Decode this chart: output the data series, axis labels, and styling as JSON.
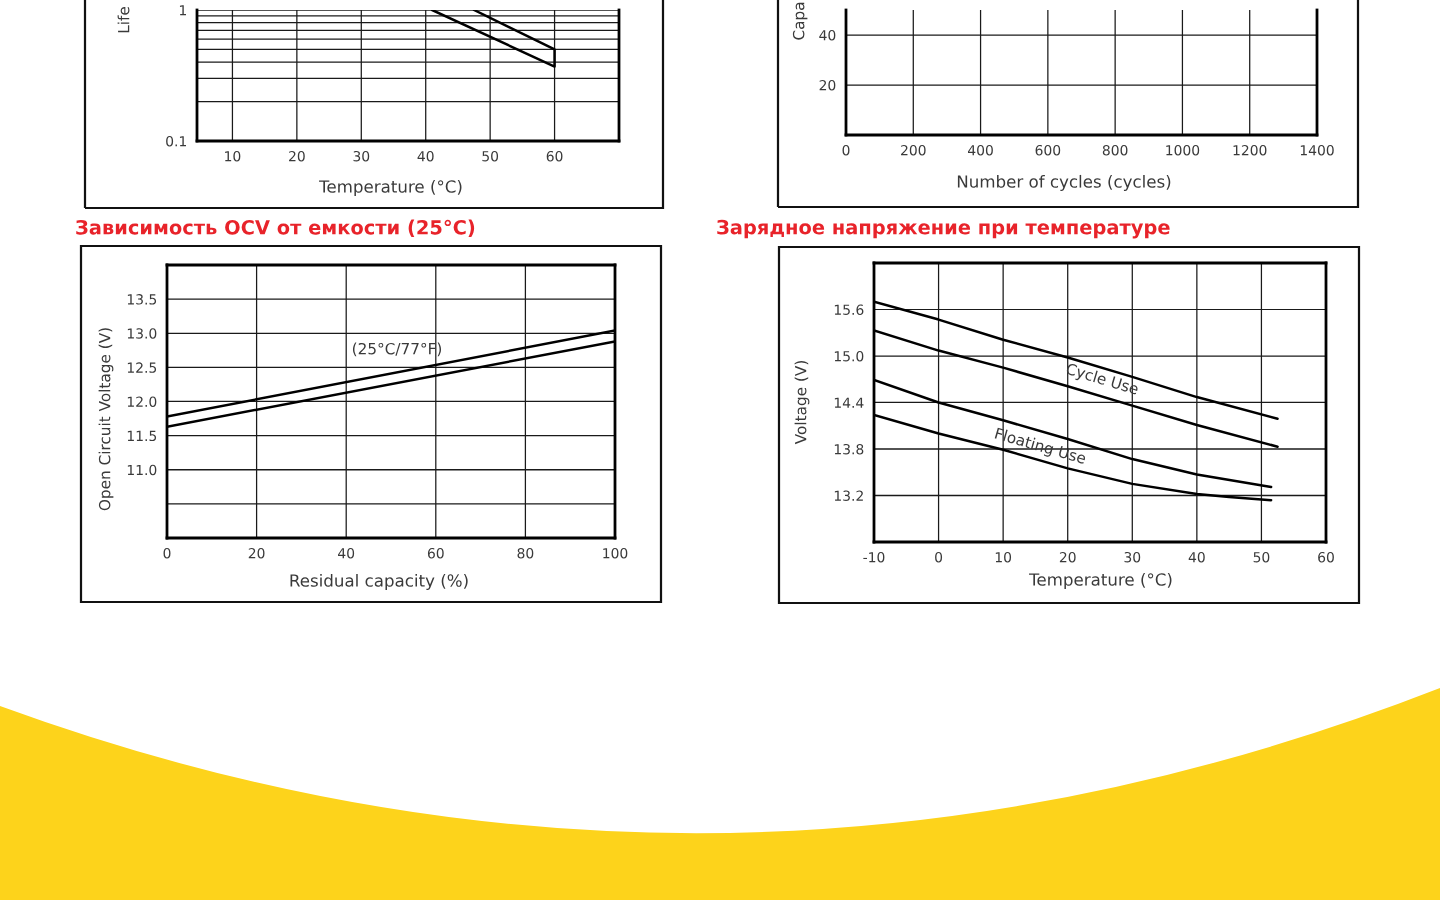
{
  "chart_data": [
    {
      "type": "line",
      "xlabel": "Temperature (°C)",
      "ylabel": "Life",
      "log": true,
      "xlim": [
        4.5,
        70
      ],
      "xticks": [
        10,
        20,
        30,
        40,
        50,
        60
      ],
      "ylim": [
        0.1,
        1
      ],
      "yticks": [
        0.1,
        {
          "value": 0.2,
          "label": null
        },
        {
          "value": 0.3,
          "label": null
        },
        {
          "value": 0.4,
          "label": null
        },
        {
          "value": 0.5,
          "label": null
        },
        {
          "value": 0.6,
          "label": null
        },
        {
          "value": 0.7,
          "label": null
        },
        {
          "value": 0.8,
          "label": null
        },
        {
          "value": 0.9,
          "label": null
        },
        1
      ],
      "grid": true,
      "line_style": "solid",
      "series": [
        {
          "color": "#000000",
          "x": [
            47.5,
            60,
            60,
            41
          ],
          "values": [
            1,
            0.5,
            0.37,
            1
          ]
        }
      ]
    },
    {
      "type": "line",
      "xlabel": "Number of cycles (cycles)",
      "ylabel": "Capa",
      "xlim": [
        0,
        1400
      ],
      "xticks": [
        0,
        200,
        400,
        600,
        800,
        1000,
        1200,
        1400
      ],
      "ylim": [
        0,
        50
      ],
      "yticks": [
        20,
        40
      ],
      "grid": true
    },
    {
      "type": "line",
      "title": "Зависимость OCV от емкости (25°C)",
      "xlabel": "Residual capacity (%)",
      "ylabel": "Open Circuit Voltage (V)",
      "xlim": [
        0,
        100
      ],
      "xticks": [
        0,
        20,
        40,
        60,
        80,
        100
      ],
      "ylim": [
        10,
        14
      ],
      "yticks": [
        {
          "value": 10.5,
          "label": null
        },
        {
          "value": 11,
          "label": "11.0"
        },
        11.5,
        {
          "value": 12,
          "label": "12.0"
        },
        12.5,
        {
          "value": 13,
          "label": "13.0"
        },
        13.5
      ],
      "grid": true,
      "line_style": "solid",
      "series": [
        {
          "color": "#000000",
          "x": [
            0,
            100
          ],
          "values": [
            11.78,
            13.04
          ]
        },
        {
          "color": "#000000",
          "x": [
            0,
            100
          ],
          "values": [
            11.63,
            12.88
          ]
        }
      ],
      "annotations": [
        "(25°C/77°F)"
      ]
    },
    {
      "type": "line",
      "title": "Зарядное напряжение при температуре",
      "xlabel": "Temperature (°C)",
      "ylabel": "Voltage (V)",
      "xlim": [
        -10,
        60
      ],
      "xticks": [
        -10,
        0,
        10,
        20,
        30,
        40,
        50,
        60
      ],
      "ylim": [
        12.6,
        16.2
      ],
      "yticks": [
        13.2,
        13.8,
        14.4,
        {
          "value": 15,
          "label": "15.0"
        },
        15.6
      ],
      "grid": true,
      "line_style": "solid",
      "series": [
        {
          "color": "#000000",
          "x": [
            -10,
            0,
            10,
            20,
            30,
            40,
            52.5
          ],
          "values": [
            15.7,
            15.47,
            15.21,
            14.98,
            14.73,
            14.47,
            14.19
          ]
        },
        {
          "color": "#000000",
          "x": [
            -10,
            0,
            10,
            20,
            30,
            40,
            52.5
          ],
          "values": [
            15.33,
            15.07,
            14.85,
            14.61,
            14.36,
            14.11,
            13.83
          ]
        },
        {
          "color": "#000000",
          "x": [
            -10,
            0,
            10,
            20,
            30,
            40,
            51.5
          ],
          "values": [
            14.69,
            14.4,
            14.17,
            13.93,
            13.67,
            13.47,
            13.31
          ]
        },
        {
          "color": "#000000",
          "x": [
            -10,
            0,
            10,
            20,
            30,
            40,
            45,
            51.5
          ],
          "values": [
            14.24,
            14.0,
            13.79,
            13.55,
            13.35,
            13.22,
            13.18,
            13.14
          ]
        }
      ],
      "annotations": [
        "Cycle Use",
        "Floating Use"
      ]
    }
  ]
}
